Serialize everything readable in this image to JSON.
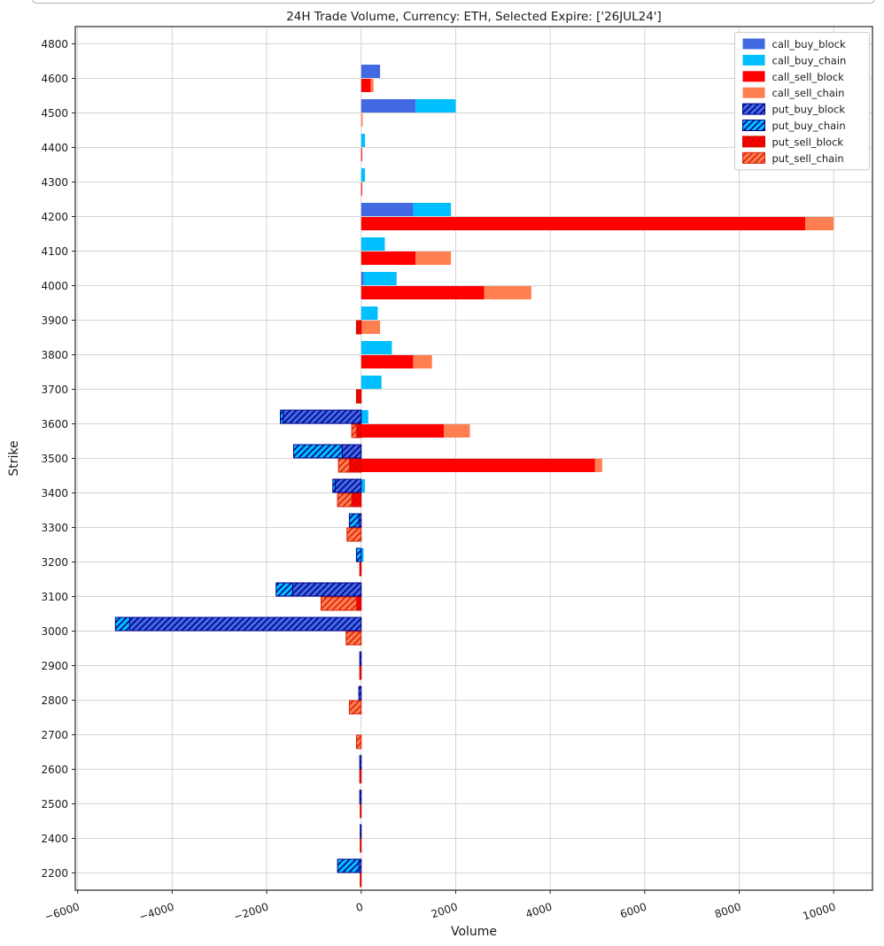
{
  "figure": {
    "title": "24H Trade Volume, Currency: ETH, Selected Expire: ['26JUL24']",
    "xlabel": "Volume",
    "ylabel": "Strike"
  },
  "chart_data": {
    "type": "bar",
    "orientation": "horizontal",
    "title": "24H Trade Volume, Currency: ETH, Selected Expire: ['26JUL24']",
    "xlabel": "Volume",
    "ylabel": "Strike",
    "xlim": [
      -6050,
      10820
    ],
    "xticks": [
      -6000,
      -4000,
      -2000,
      0,
      2000,
      4000,
      6000,
      8000,
      10000
    ],
    "grid": true,
    "legend_position": "upper right",
    "colors": {
      "call_buy_block": "#4169E1",
      "call_buy_chain": "#00BFFF",
      "call_sell_block": "#FF0000",
      "call_sell_chain": "#FF7F50",
      "put_buy_block": "#4169E1",
      "put_buy_chain": "#00BFFF",
      "put_sell_block": "#FF0000",
      "put_sell_chain": "#FF7F50",
      "hatch_blue": "#00008B",
      "hatch_red": "#C41200",
      "grid_line": "#d4d4d4",
      "spine": "#262626"
    },
    "legend": [
      {
        "label": "call_buy_block",
        "series": "call_buy_block",
        "hatched": false
      },
      {
        "label": "call_buy_chain",
        "series": "call_buy_chain",
        "hatched": false
      },
      {
        "label": "call_sell_block",
        "series": "call_sell_block",
        "hatched": false
      },
      {
        "label": "call_sell_chain",
        "series": "call_sell_chain",
        "hatched": false
      },
      {
        "label": "put_buy_block",
        "series": "put_buy_block",
        "hatched": true
      },
      {
        "label": "put_buy_chain",
        "series": "put_buy_chain",
        "hatched": true
      },
      {
        "label": "put_sell_block",
        "series": "put_sell_block",
        "hatched": true
      },
      {
        "label": "put_sell_chain",
        "series": "put_sell_chain",
        "hatched": true
      }
    ],
    "buy_series_pos": [
      "call_buy_block",
      "call_buy_chain"
    ],
    "buy_series_neg": [
      "put_buy_block",
      "put_buy_chain"
    ],
    "sell_series_pos": [
      "call_sell_block",
      "call_sell_chain"
    ],
    "sell_series_neg": [
      "put_sell_block",
      "put_sell_chain"
    ],
    "rows": [
      {
        "strike": "4800",
        "call_buy_block": 0,
        "call_buy_chain": 0,
        "call_sell_block": 0,
        "call_sell_chain": 0,
        "put_buy_block": 0,
        "put_buy_chain": 0,
        "put_sell_block": 0,
        "put_sell_chain": 0
      },
      {
        "strike": "4600",
        "call_buy_block": 400,
        "call_buy_chain": 0,
        "call_sell_block": 200,
        "call_sell_chain": 60,
        "put_buy_block": 0,
        "put_buy_chain": 0,
        "put_sell_block": 0,
        "put_sell_chain": 0
      },
      {
        "strike": "4500",
        "call_buy_block": 1150,
        "call_buy_chain": 850,
        "call_sell_block": 0,
        "call_sell_chain": 30,
        "put_buy_block": 0,
        "put_buy_chain": 0,
        "put_sell_block": 0,
        "put_sell_chain": 0
      },
      {
        "strike": "4400",
        "call_buy_block": 0,
        "call_buy_chain": 80,
        "call_sell_block": 20,
        "call_sell_chain": 0,
        "put_buy_block": 0,
        "put_buy_chain": 0,
        "put_sell_block": 0,
        "put_sell_chain": 0
      },
      {
        "strike": "4300",
        "call_buy_block": 0,
        "call_buy_chain": 80,
        "call_sell_block": 20,
        "call_sell_chain": 0,
        "put_buy_block": 0,
        "put_buy_chain": 0,
        "put_sell_block": 0,
        "put_sell_chain": 0
      },
      {
        "strike": "4200",
        "call_buy_block": 1100,
        "call_buy_chain": 800,
        "call_sell_block": 9400,
        "call_sell_chain": 600,
        "put_buy_block": 0,
        "put_buy_chain": 0,
        "put_sell_block": 0,
        "put_sell_chain": 0
      },
      {
        "strike": "4100",
        "call_buy_block": 0,
        "call_buy_chain": 500,
        "call_sell_block": 1150,
        "call_sell_chain": 750,
        "put_buy_block": 0,
        "put_buy_chain": 0,
        "put_sell_block": 0,
        "put_sell_chain": 0
      },
      {
        "strike": "4000",
        "call_buy_block": 50,
        "call_buy_chain": 700,
        "call_sell_block": 2600,
        "call_sell_chain": 1000,
        "put_buy_block": 0,
        "put_buy_chain": 0,
        "put_sell_block": 0,
        "put_sell_chain": 0
      },
      {
        "strike": "3900",
        "call_buy_block": 0,
        "call_buy_chain": 350,
        "call_sell_block": 0,
        "call_sell_chain": 400,
        "put_buy_block": 0,
        "put_buy_chain": 0,
        "put_sell_block": -100,
        "put_sell_chain": 0
      },
      {
        "strike": "3800",
        "call_buy_block": 0,
        "call_buy_chain": 650,
        "call_sell_block": 1100,
        "call_sell_chain": 400,
        "put_buy_block": 0,
        "put_buy_chain": 0,
        "put_sell_block": 0,
        "put_sell_chain": 0
      },
      {
        "strike": "3700",
        "call_buy_block": 0,
        "call_buy_chain": 430,
        "call_sell_block": 0,
        "call_sell_chain": 0,
        "put_buy_block": 0,
        "put_buy_chain": 0,
        "put_sell_block": -100,
        "put_sell_chain": 0
      },
      {
        "strike": "3600",
        "call_buy_block": 0,
        "call_buy_chain": 150,
        "call_sell_block": 1750,
        "call_sell_chain": 550,
        "put_buy_block": -1650,
        "put_buy_chain": -60,
        "put_sell_block": -100,
        "put_sell_chain": -100
      },
      {
        "strike": "3500",
        "call_buy_block": 0,
        "call_buy_chain": 0,
        "call_sell_block": 4950,
        "call_sell_chain": 150,
        "put_buy_block": -400,
        "put_buy_chain": -1030,
        "put_sell_block": -250,
        "put_sell_chain": -230
      },
      {
        "strike": "3400",
        "call_buy_block": 0,
        "call_buy_chain": 80,
        "call_sell_block": 0,
        "call_sell_chain": 0,
        "put_buy_block": -550,
        "put_buy_chain": -50,
        "put_sell_block": -200,
        "put_sell_chain": -300
      },
      {
        "strike": "3300",
        "call_buy_block": 0,
        "call_buy_chain": 0,
        "call_sell_block": 0,
        "call_sell_chain": 0,
        "put_buy_block": -50,
        "put_buy_chain": -200,
        "put_sell_block": 0,
        "put_sell_chain": -300
      },
      {
        "strike": "3200",
        "call_buy_block": 0,
        "call_buy_chain": 50,
        "call_sell_block": 0,
        "call_sell_chain": 0,
        "put_buy_block": 0,
        "put_buy_chain": -100,
        "put_sell_block": -30,
        "put_sell_chain": 0
      },
      {
        "strike": "3100",
        "call_buy_block": 0,
        "call_buy_chain": 0,
        "call_sell_block": 0,
        "call_sell_chain": 0,
        "put_buy_block": -1450,
        "put_buy_chain": -350,
        "put_sell_block": -100,
        "put_sell_chain": -750
      },
      {
        "strike": "3000",
        "call_buy_block": 0,
        "call_buy_chain": 0,
        "call_sell_block": 0,
        "call_sell_chain": 0,
        "put_buy_block": -4900,
        "put_buy_chain": -300,
        "put_sell_block": 0,
        "put_sell_chain": -320
      },
      {
        "strike": "2900",
        "call_buy_block": 0,
        "call_buy_chain": 0,
        "call_sell_block": 0,
        "call_sell_chain": 0,
        "put_buy_block": -30,
        "put_buy_chain": 0,
        "put_sell_block": -30,
        "put_sell_chain": 0
      },
      {
        "strike": "2800",
        "call_buy_block": 0,
        "call_buy_chain": 0,
        "call_sell_block": 0,
        "call_sell_chain": 0,
        "put_buy_block": -50,
        "put_buy_chain": 0,
        "put_sell_block": 0,
        "put_sell_chain": -250
      },
      {
        "strike": "2700",
        "call_buy_block": 0,
        "call_buy_chain": 0,
        "call_sell_block": 0,
        "call_sell_chain": 0,
        "put_buy_block": 0,
        "put_buy_chain": 0,
        "put_sell_block": 0,
        "put_sell_chain": -100
      },
      {
        "strike": "2600",
        "call_buy_block": 0,
        "call_buy_chain": 0,
        "call_sell_block": 0,
        "call_sell_chain": 0,
        "put_buy_block": -30,
        "put_buy_chain": 0,
        "put_sell_block": -30,
        "put_sell_chain": 0
      },
      {
        "strike": "2500",
        "call_buy_block": 0,
        "call_buy_chain": 0,
        "call_sell_block": 0,
        "call_sell_chain": 0,
        "put_buy_block": -30,
        "put_buy_chain": 0,
        "put_sell_block": -20,
        "put_sell_chain": 0
      },
      {
        "strike": "2400",
        "call_buy_block": 0,
        "call_buy_chain": 0,
        "call_sell_block": 0,
        "call_sell_chain": 0,
        "put_buy_block": -20,
        "put_buy_chain": 0,
        "put_sell_block": -20,
        "put_sell_chain": 0
      },
      {
        "strike": "2200",
        "call_buy_block": 0,
        "call_buy_chain": 0,
        "call_sell_block": 0,
        "call_sell_chain": 0,
        "put_buy_block": -50,
        "put_buy_chain": -450,
        "put_sell_block": -20,
        "put_sell_chain": 0
      }
    ]
  }
}
